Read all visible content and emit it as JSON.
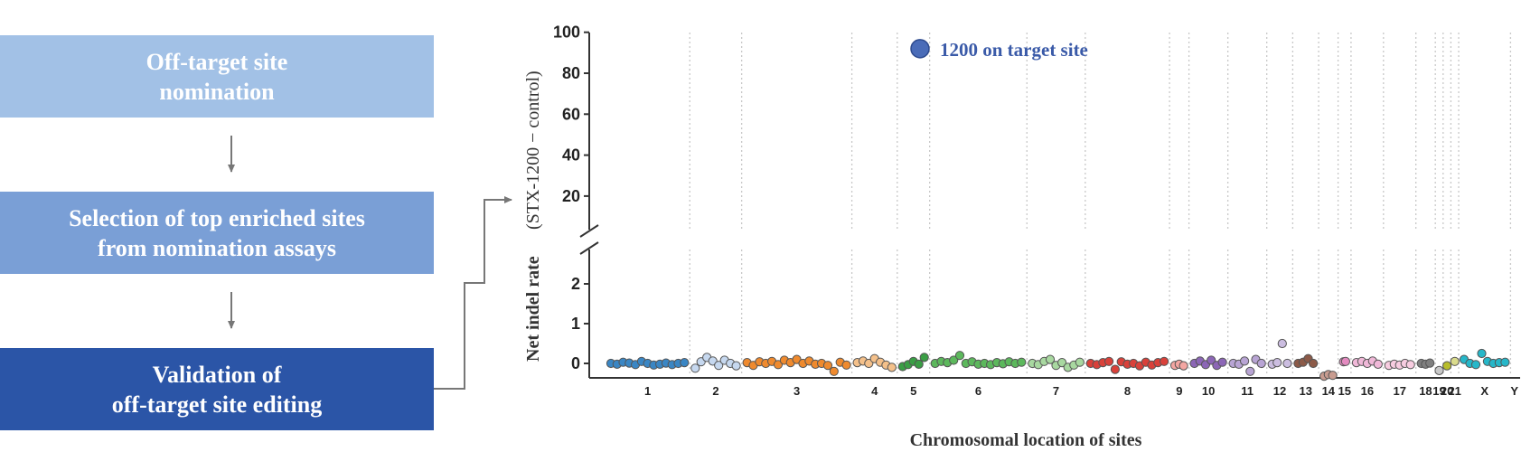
{
  "workflow": {
    "steps": [
      {
        "label": "Off-target site\nnomination",
        "color": "#a2c1e6"
      },
      {
        "label": "Selection of top enriched sites\nfrom nomination assays",
        "color": "#7a9fd6"
      },
      {
        "label": "Validation of\noff-target site editing",
        "color": "#2b55a7"
      }
    ]
  },
  "chart_data": {
    "type": "scatter",
    "title": "",
    "xlabel": "Chromosomal location of sites",
    "ylabel": "Net indel rate",
    "ylabel_sub": "(STX-1200 − control)",
    "y_axis_broken": true,
    "y_ticks_lower": [
      "0",
      "1",
      "2"
    ],
    "y_ticks_upper": [
      "20",
      "40",
      "60",
      "80",
      "100"
    ],
    "ylim_lower": [
      -0.3,
      2.5
    ],
    "ylim_upper": [
      12,
      100
    ],
    "grid": "vertical dotted lines between chromosomes",
    "categories": [
      "1",
      "2",
      "3",
      "4",
      "5",
      "6",
      "7",
      "8",
      "9",
      "10",
      "11",
      "12",
      "13",
      "14",
      "15",
      "16",
      "17",
      "18",
      "19",
      "20",
      "21",
      "X",
      "Y"
    ],
    "series": [
      {
        "chromosome": "1",
        "color": "#3a86c4",
        "values": [
          0.0,
          -0.02,
          0.03,
          0.01,
          -0.03,
          0.05,
          0.0,
          -0.04,
          -0.02,
          0.01,
          -0.03,
          0.0,
          0.02
        ]
      },
      {
        "chromosome": "2",
        "color": "#c6d8ef",
        "values": [
          -0.12,
          0.04,
          0.15,
          0.06,
          -0.05,
          0.08,
          0.0,
          -0.06
        ]
      },
      {
        "chromosome": "3",
        "color": "#ef8a2e",
        "values": [
          0.02,
          -0.05,
          0.04,
          0.0,
          0.05,
          -0.03,
          0.08,
          0.02,
          0.1,
          0.0,
          0.06,
          -0.02,
          0.0,
          -0.05,
          -0.2,
          0.03,
          -0.04
        ]
      },
      {
        "chromosome": "4",
        "color": "#f4c08a",
        "values": [
          0.02,
          0.06,
          0.0,
          0.12,
          0.03,
          -0.04,
          -0.1
        ]
      },
      {
        "chromosome": "5",
        "color": "#3a9e45",
        "values": [
          -0.08,
          -0.03,
          0.05,
          -0.02,
          0.15
        ]
      },
      {
        "chromosome": "6",
        "color": "#5cb85c",
        "values": [
          0.0,
          0.05,
          0.02,
          0.08,
          0.2,
          0.0,
          0.04,
          -0.02,
          0.0,
          -0.03,
          0.02,
          -0.01,
          0.04,
          0.0,
          0.03
        ]
      },
      {
        "chromosome": "7",
        "color": "#a8d8a0",
        "values": [
          0.0,
          -0.03,
          0.05,
          0.1,
          -0.05,
          0.02,
          -0.1,
          -0.04,
          0.03
        ]
      },
      {
        "chromosome": "8",
        "color": "#d9413a",
        "values": [
          0.0,
          -0.03,
          0.02,
          0.05,
          -0.15,
          0.04,
          -0.02,
          0.0,
          -0.06,
          0.03,
          -0.04,
          0.02,
          0.05
        ]
      },
      {
        "chromosome": "9",
        "color": "#f4a6a2",
        "values": [
          -0.05,
          -0.02,
          -0.06
        ]
      },
      {
        "chromosome": "10",
        "color": "#8c66b6",
        "values": [
          0.0,
          0.06,
          -0.03,
          0.08,
          -0.05,
          0.03
        ]
      },
      {
        "chromosome": "11",
        "color": "#b8a4d4",
        "values": [
          0.0,
          -0.02,
          0.06,
          -0.2,
          0.1,
          0.0
        ]
      },
      {
        "chromosome": "12",
        "color": "#cbbde0",
        "values": [
          -0.02,
          0.02,
          0.5,
          0.0
        ]
      },
      {
        "chromosome": "13",
        "color": "#8c5a48",
        "values": [
          0.0,
          0.03,
          0.12,
          0.0
        ]
      },
      {
        "chromosome": "14",
        "color": "#c89c90",
        "values": [
          -0.32,
          -0.28,
          -0.3
        ]
      },
      {
        "chromosome": "15",
        "color": "#e48ac0",
        "values": [
          0.04,
          0.05
        ]
      },
      {
        "chromosome": "16",
        "color": "#f0b8d8",
        "values": [
          0.02,
          0.05,
          0.0,
          0.06,
          -0.02
        ]
      },
      {
        "chromosome": "17",
        "color": "#f7cce0",
        "values": [
          -0.05,
          -0.02,
          -0.04,
          0.0,
          -0.03
        ]
      },
      {
        "chromosome": "18",
        "color": "#7f7f7f",
        "values": [
          0.0,
          -0.02,
          0.01
        ]
      },
      {
        "chromosome": "19",
        "color": "#c8c8c8",
        "values": [
          -0.18
        ]
      },
      {
        "chromosome": "20",
        "color": "#b8bd2c",
        "values": [
          -0.06
        ]
      },
      {
        "chromosome": "21",
        "color": "#dadb8c",
        "values": [
          0.05
        ]
      },
      {
        "chromosome": "X",
        "color": "#26b7c9",
        "values": [
          0.1,
          0.0,
          -0.03,
          0.25,
          0.05,
          0.0,
          0.02,
          0.03
        ]
      },
      {
        "chromosome": "Y",
        "color": "#9fdbe6",
        "values": []
      }
    ],
    "on_target": {
      "label": "1200 on target site",
      "value": 92,
      "color": "#4a6cb8"
    }
  }
}
